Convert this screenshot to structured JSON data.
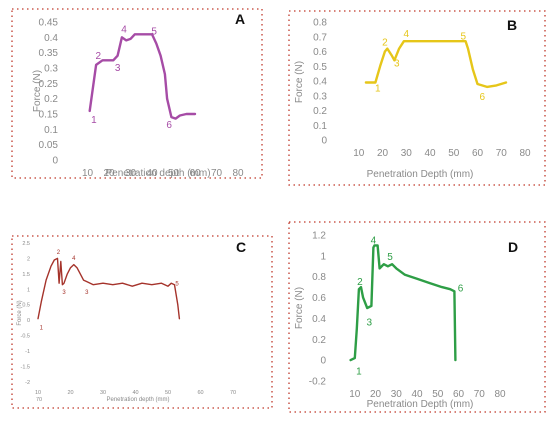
{
  "chart_data": [
    {
      "panel": "A",
      "type": "line",
      "color": "#a64ca6",
      "xlabel": "Penetration depth (mm)",
      "ylabel": "Force (N)",
      "xlim": [
        0,
        80
      ],
      "ylim": [
        0,
        0.45
      ],
      "xticks": [
        "10",
        "20",
        "30",
        "40",
        "50",
        "60",
        "70",
        "80"
      ],
      "yticks": [
        "0",
        "0.05",
        "0.1",
        "0.15",
        "0.2",
        "0.25",
        "0.3",
        "0.35",
        "0.4",
        "0.45"
      ],
      "x": [
        11,
        14,
        17,
        20,
        22,
        24,
        26,
        28,
        30,
        32,
        36,
        40,
        42,
        44,
        46,
        47,
        49,
        51,
        53,
        56,
        60
      ],
      "y": [
        0.16,
        0.31,
        0.325,
        0.325,
        0.325,
        0.34,
        0.4,
        0.39,
        0.395,
        0.41,
        0.41,
        0.41,
        0.38,
        0.34,
        0.28,
        0.2,
        0.14,
        0.135,
        0.145,
        0.15,
        0.15
      ],
      "annotations": [
        {
          "text": "1",
          "x": 13,
          "y": 0.12
        },
        {
          "text": "2",
          "x": 15,
          "y": 0.33
        },
        {
          "text": "3",
          "x": 24,
          "y": 0.29
        },
        {
          "text": "4",
          "x": 27,
          "y": 0.415
        },
        {
          "text": "5",
          "x": 41,
          "y": 0.41
        },
        {
          "text": "6",
          "x": 48,
          "y": 0.105
        }
      ]
    },
    {
      "panel": "B",
      "type": "line",
      "color": "#e6c619",
      "xlabel": "Penetration Depth (mm)",
      "ylabel": "Force (N)",
      "xlim": [
        0,
        80
      ],
      "ylim": [
        0,
        0.8
      ],
      "xticks": [
        "10",
        "20",
        "30",
        "40",
        "50",
        "60",
        "70",
        "80"
      ],
      "yticks": [
        "0",
        "0.1",
        "0.2",
        "0.3",
        "0.4",
        "0.5",
        "0.6",
        "0.7",
        "0.8"
      ],
      "x": [
        13,
        15,
        17,
        19,
        21,
        22,
        24,
        25,
        27,
        29,
        35,
        45,
        55,
        56,
        58,
        60,
        64,
        68,
        72
      ],
      "y": [
        0.39,
        0.39,
        0.39,
        0.5,
        0.6,
        0.62,
        0.57,
        0.54,
        0.62,
        0.67,
        0.67,
        0.67,
        0.67,
        0.62,
        0.48,
        0.38,
        0.36,
        0.37,
        0.39
      ],
      "annotations": [
        {
          "text": "1",
          "x": 18,
          "y": 0.33
        },
        {
          "text": "2",
          "x": 21,
          "y": 0.64
        },
        {
          "text": "3",
          "x": 26,
          "y": 0.5
        },
        {
          "text": "4",
          "x": 30,
          "y": 0.7
        },
        {
          "text": "5",
          "x": 54,
          "y": 0.68
        },
        {
          "text": "6",
          "x": 62,
          "y": 0.27
        }
      ]
    },
    {
      "panel": "C",
      "type": "line",
      "color": "#a5332b",
      "xlabel": "Penetration depth (mm)",
      "ylabel": "Force (N)",
      "xlim": [
        10,
        70
      ],
      "ylim": [
        -2,
        2.5
      ],
      "xticks": [
        "10",
        "20",
        "30",
        "40",
        "50",
        "60",
        "70"
      ],
      "yticks": [
        "-2",
        "-1.5",
        "-1",
        "-0.5",
        "0",
        "0.5",
        "1",
        "1.5",
        "2",
        "2.5"
      ],
      "x": [
        10,
        11,
        12.5,
        14,
        15,
        16,
        16.5,
        17,
        17.5,
        18,
        19,
        20,
        21,
        22,
        23,
        24,
        25,
        27,
        30,
        33,
        36,
        39,
        42,
        45,
        48,
        50,
        51,
        52,
        53,
        53.5
      ],
      "y": [
        0.05,
        0.6,
        1.3,
        1.75,
        1.95,
        2.0,
        1.2,
        1.9,
        1.15,
        1.2,
        1.5,
        1.7,
        1.8,
        1.7,
        1.5,
        1.3,
        1.25,
        1.15,
        1.2,
        1.15,
        1.2,
        1.1,
        1.2,
        1.15,
        1.2,
        1.1,
        1.2,
        1.15,
        0.5,
        0.05
      ],
      "annotations": [
        {
          "text": "1",
          "x": 11,
          "y": -0.3
        },
        {
          "text": "2",
          "x": 16.3,
          "y": 2.15
        },
        {
          "text": "3",
          "x": 18,
          "y": 0.85
        },
        {
          "text": "4",
          "x": 21,
          "y": 1.95
        },
        {
          "text": "3",
          "x": 25,
          "y": 0.85
        },
        {
          "text": "5",
          "x": 52.8,
          "y": 1.12
        }
      ],
      "xlabel_extra": "70"
    },
    {
      "panel": "D",
      "type": "line",
      "color": "#2e9e46",
      "xlabel": "Penetration Depth (mm)",
      "ylabel": "Force (N)",
      "xlim": [
        0,
        80
      ],
      "ylim": [
        -0.2,
        1.2
      ],
      "xticks": [
        "10",
        "20",
        "30",
        "40",
        "50",
        "60",
        "70",
        "80"
      ],
      "yticks": [
        "-0.2",
        "0",
        "0.2",
        "0.4",
        "0.6",
        "0.8",
        "1",
        "1.2"
      ],
      "x": [
        8,
        10,
        11,
        12,
        13,
        14,
        16,
        18,
        19,
        19.5,
        21,
        22,
        24,
        26,
        28,
        30,
        34,
        40,
        46,
        52,
        56,
        58,
        58.5
      ],
      "y": [
        0,
        0.02,
        0.3,
        0.68,
        0.7,
        0.6,
        0.5,
        0.52,
        1.08,
        1.1,
        1.1,
        0.88,
        0.92,
        0.9,
        0.92,
        0.88,
        0.82,
        0.78,
        0.74,
        0.7,
        0.68,
        0.66,
        0.0
      ],
      "annotations": [
        {
          "text": "1",
          "x": 12,
          "y": -0.14
        },
        {
          "text": "2",
          "x": 12.5,
          "y": 0.72
        },
        {
          "text": "3",
          "x": 17,
          "y": 0.33
        },
        {
          "text": "4",
          "x": 19,
          "y": 1.12
        },
        {
          "text": "5",
          "x": 27,
          "y": 0.96
        },
        {
          "text": "6",
          "x": 61,
          "y": 0.66
        }
      ]
    }
  ]
}
